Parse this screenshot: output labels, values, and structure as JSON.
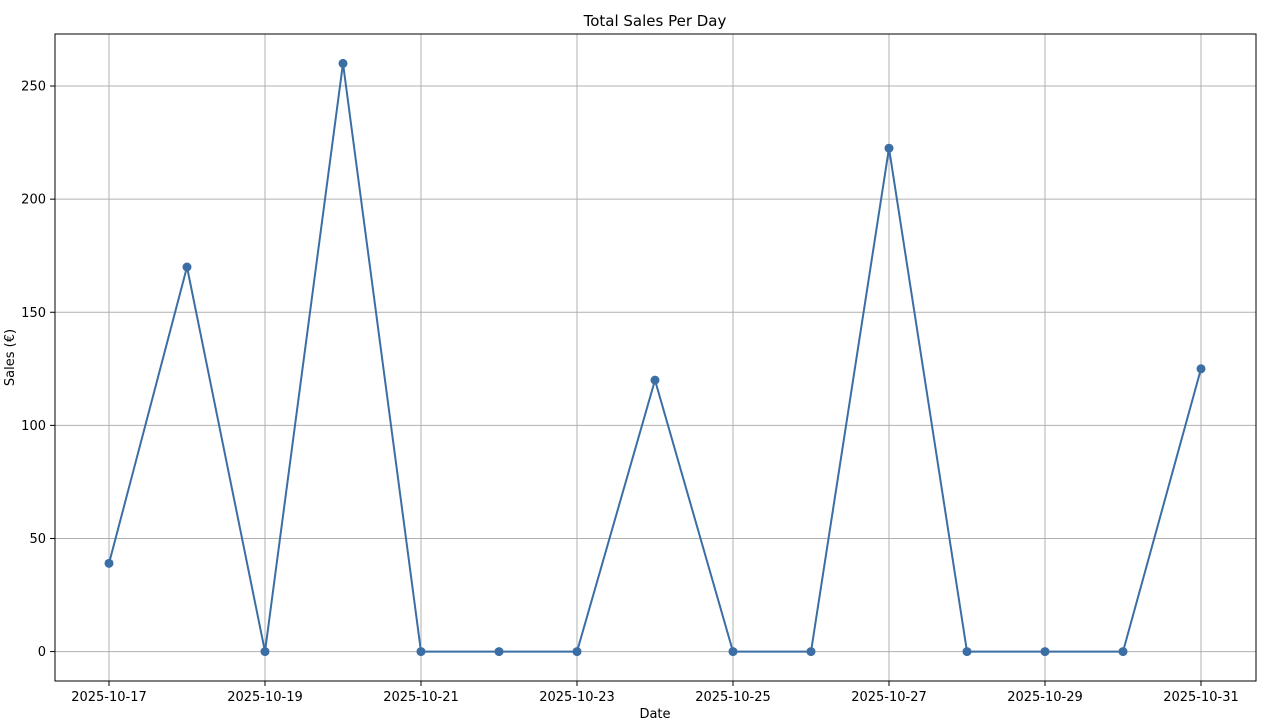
{
  "chart_data": {
    "type": "line",
    "title": "Total Sales Per Day",
    "xlabel": "Date",
    "ylabel": "Sales (€)",
    "x": [
      "2025-10-17",
      "2025-10-18",
      "2025-10-19",
      "2025-10-20",
      "2025-10-21",
      "2025-10-22",
      "2025-10-23",
      "2025-10-24",
      "2025-10-25",
      "2025-10-26",
      "2025-10-27",
      "2025-10-28",
      "2025-10-29",
      "2025-10-30",
      "2025-10-31"
    ],
    "series": [
      {
        "values": [
          39,
          170,
          0,
          260,
          0,
          0,
          0,
          120,
          0,
          0,
          222.5,
          0,
          0,
          0,
          125
        ],
        "color": "#3a6ea5",
        "marker": "circle"
      }
    ],
    "x_tick_labels": [
      "2025-10-17",
      "2025-10-19",
      "2025-10-21",
      "2025-10-23",
      "2025-10-25",
      "2025-10-27",
      "2025-10-29",
      "2025-10-31"
    ],
    "y_ticks": [
      0,
      50,
      100,
      150,
      200,
      250
    ],
    "ylim": [
      -13,
      273
    ],
    "xlim": [
      "2025-10-16",
      "2025-10-31"
    ],
    "grid": true,
    "legend": false
  }
}
